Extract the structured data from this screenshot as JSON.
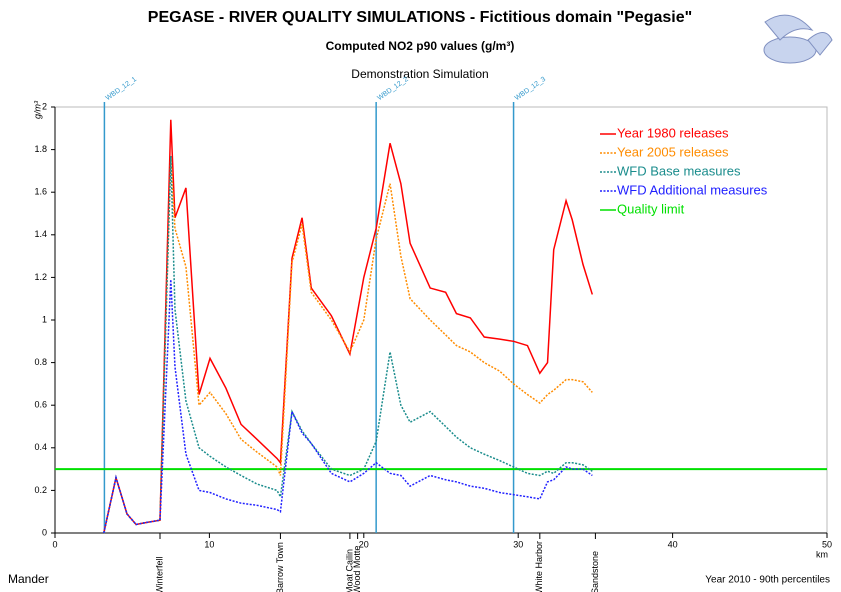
{
  "chart_data": {
    "type": "line",
    "title": "PEGASE - RIVER QUALITY SIMULATIONS - Fictitious domain \"Pegasie\"",
    "subtitle": "Computed NO2 p90 values (g/m³)",
    "caption": "Demonstration Simulation",
    "y_label": "g/m³",
    "x_label": "km",
    "footer_left": "Mander",
    "footer_right": "Year 2010 - 90th percentiles",
    "xlim": [
      0,
      50
    ],
    "xticks": [
      0,
      10,
      20,
      30,
      40,
      50
    ],
    "ylim": [
      0,
      2
    ],
    "yticks": [
      0,
      0.2,
      0.4,
      0.6,
      0.8,
      1,
      1.2,
      1.4,
      1.6,
      1.8,
      2
    ],
    "legend": "upper right",
    "x": [
      3.16,
      3.95,
      4.66,
      5.25,
      5.96,
      6.8,
      7.5,
      7.77,
      8.48,
      9.33,
      10.04,
      11.07,
      12.05,
      13.08,
      14.38,
      14.6,
      15.35,
      16.0,
      16.6,
      17.9,
      19.1,
      20.0,
      20.8,
      21.7,
      22.4,
      23.0,
      24.3,
      25.3,
      26.0,
      26.9,
      27.8,
      28.8,
      29.7,
      30.6,
      31.4,
      31.9,
      32.3,
      33.1,
      33.5,
      34.2,
      34.8
    ],
    "series": [
      {
        "name": "Year 1980 releases",
        "color": "#ff0000",
        "dash": "solid",
        "values": [
          0,
          0.26,
          0.09,
          0.04,
          0.05,
          0.06,
          1.94,
          1.48,
          1.62,
          0.65,
          0.82,
          0.68,
          0.51,
          0.44,
          0.35,
          0.33,
          1.29,
          1.48,
          1.15,
          1.02,
          0.84,
          1.2,
          1.43,
          1.83,
          1.64,
          1.36,
          1.15,
          1.13,
          1.03,
          1.01,
          0.92,
          0.91,
          0.9,
          0.88,
          0.75,
          0.8,
          1.33,
          1.56,
          1.47,
          1.26,
          1.12
        ]
      },
      {
        "name": "Year 2005 releases",
        "color": "#ff8c00",
        "dash": "dotted",
        "values": [
          0,
          0.26,
          0.09,
          0.04,
          0.05,
          0.06,
          1.76,
          1.43,
          1.25,
          0.6,
          0.66,
          0.56,
          0.44,
          0.38,
          0.31,
          0.27,
          1.27,
          1.45,
          1.13,
          1.0,
          0.85,
          1.0,
          1.38,
          1.64,
          1.3,
          1.1,
          1.0,
          0.93,
          0.88,
          0.85,
          0.8,
          0.76,
          0.7,
          0.65,
          0.61,
          0.65,
          0.67,
          0.72,
          0.72,
          0.71,
          0.66
        ]
      },
      {
        "name": "WFD Base measures",
        "color": "#1a8c8c",
        "dash": "dotted",
        "values": [
          0,
          0.26,
          0.09,
          0.04,
          0.05,
          0.06,
          1.77,
          1.05,
          0.62,
          0.4,
          0.36,
          0.31,
          0.27,
          0.23,
          0.2,
          0.17,
          0.57,
          0.48,
          0.42,
          0.3,
          0.27,
          0.3,
          0.43,
          0.85,
          0.6,
          0.52,
          0.57,
          0.5,
          0.45,
          0.4,
          0.37,
          0.34,
          0.31,
          0.28,
          0.27,
          0.29,
          0.28,
          0.33,
          0.33,
          0.32,
          0.29
        ]
      },
      {
        "name": "WFD Additional measures",
        "color": "#2020ff",
        "dash": "dotted",
        "values": [
          0,
          0.26,
          0.09,
          0.04,
          0.05,
          0.06,
          1.19,
          0.78,
          0.37,
          0.2,
          0.19,
          0.16,
          0.14,
          0.13,
          0.11,
          0.1,
          0.57,
          0.47,
          0.42,
          0.28,
          0.24,
          0.28,
          0.33,
          0.28,
          0.27,
          0.22,
          0.27,
          0.25,
          0.24,
          0.22,
          0.21,
          0.19,
          0.18,
          0.17,
          0.16,
          0.24,
          0.25,
          0.31,
          0.3,
          0.3,
          0.27
        ]
      }
    ],
    "limit": {
      "name": "Quality limit",
      "color": "#00e000",
      "value": 0.3
    },
    "markers": [
      {
        "label": "WBD_12_1",
        "x": 3.2
      },
      {
        "label": "WBD_12_2",
        "x": 20.8
      },
      {
        "label": "WBD_12_3",
        "x": 29.7
      }
    ],
    "marker_color": "#3399cc",
    "locations": [
      {
        "label": "Winterfell",
        "x": 6.8
      },
      {
        "label": "Barrow Town",
        "x": 14.6
      },
      {
        "label": "Moat Cailin",
        "x": 19.1
      },
      {
        "label": "Wood Motte",
        "x": 19.6
      },
      {
        "label": "White Harbor",
        "x": 31.4
      },
      {
        "label": "Sandstone",
        "x": 35.0
      }
    ]
  }
}
